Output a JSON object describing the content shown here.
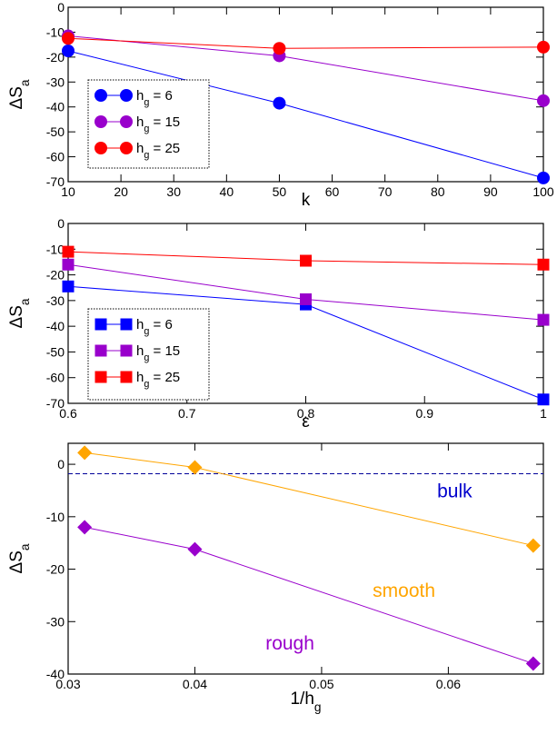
{
  "chart_data": [
    {
      "type": "line",
      "xlabel": "k",
      "ylabel": "ΔS",
      "ylabel_sub": "a",
      "xlim": [
        10,
        100
      ],
      "ylim": [
        -70,
        0
      ],
      "xticks": [
        10,
        20,
        30,
        40,
        50,
        60,
        70,
        80,
        90,
        100
      ],
      "yticks": [
        0,
        -10,
        -20,
        -30,
        -40,
        -50,
        -60,
        -70
      ],
      "marker": "circle",
      "legend_position": "lower-left",
      "series": [
        {
          "name": "h",
          "name_sub": "g",
          "name_suffix": " = 6",
          "color": "#0000ff",
          "x": [
            10,
            50,
            100
          ],
          "y": [
            -17.5,
            -38.5,
            -68.5
          ]
        },
        {
          "name": "h",
          "name_sub": "g",
          "name_suffix": " = 15",
          "color": "#9900cc",
          "x": [
            10,
            50,
            100
          ],
          "y": [
            -11.5,
            -19.5,
            -37.5
          ]
        },
        {
          "name": "h",
          "name_sub": "g",
          "name_suffix": " = 25",
          "color": "#ff0000",
          "x": [
            10,
            50,
            100
          ],
          "y": [
            -12.5,
            -16.5,
            -16
          ]
        }
      ]
    },
    {
      "type": "line",
      "xlabel": "ε",
      "ylabel": "ΔS",
      "ylabel_sub": "a",
      "xlim": [
        0.6,
        1
      ],
      "ylim": [
        -70,
        0
      ],
      "xticks": [
        0.6,
        0.7,
        0.8,
        0.9,
        1
      ],
      "xtick_labels": [
        "0.6",
        "0.7",
        "0.8",
        "0.9",
        "1"
      ],
      "yticks": [
        0,
        -10,
        -20,
        -30,
        -40,
        -50,
        -60,
        -70
      ],
      "marker": "square",
      "legend_position": "lower-left",
      "series": [
        {
          "name": "h",
          "name_sub": "g",
          "name_suffix": " = 6",
          "color": "#0000ff",
          "x": [
            0.6,
            0.8,
            1
          ],
          "y": [
            -24.5,
            -31.5,
            -68.5
          ]
        },
        {
          "name": "h",
          "name_sub": "g",
          "name_suffix": " = 15",
          "color": "#9900cc",
          "x": [
            0.6,
            0.8,
            1
          ],
          "y": [
            -16,
            -29.5,
            -37.5
          ]
        },
        {
          "name": "h",
          "name_sub": "g",
          "name_suffix": " = 25",
          "color": "#ff0000",
          "x": [
            0.6,
            0.8,
            1
          ],
          "y": [
            -11,
            -14.5,
            -16
          ]
        }
      ]
    },
    {
      "type": "line",
      "xlabel": "1/h",
      "xlabel_sub": "g",
      "ylabel": "ΔS",
      "ylabel_sub": "a",
      "xlim": [
        0.03,
        0.0675
      ],
      "ylim": [
        -40,
        4
      ],
      "xticks": [
        0.03,
        0.04,
        0.05,
        0.06
      ],
      "yticks": [
        0,
        -10,
        -20,
        -30,
        -40
      ],
      "marker": "diamond",
      "reference_line": {
        "y": -1.8,
        "label": "bulk",
        "color": "#000099"
      },
      "series": [
        {
          "name": "smooth",
          "color": "#ffa500",
          "x": [
            0.0313,
            0.04,
            0.0667
          ],
          "y": [
            2.2,
            -0.6,
            -15.5
          ]
        },
        {
          "name": "rough",
          "color": "#9900cc",
          "x": [
            0.0313,
            0.04,
            0.0667
          ],
          "y": [
            -12,
            -16.2,
            -38
          ]
        }
      ],
      "annotations": [
        {
          "text": "bulk",
          "color": "#0000cc",
          "x": 0.0605,
          "y": -6.3
        },
        {
          "text": "smooth",
          "color": "#ffa500",
          "x": 0.0565,
          "y": -25.3
        },
        {
          "text": "rough",
          "color": "#9900cc",
          "x": 0.0475,
          "y": -35.3
        }
      ]
    }
  ]
}
